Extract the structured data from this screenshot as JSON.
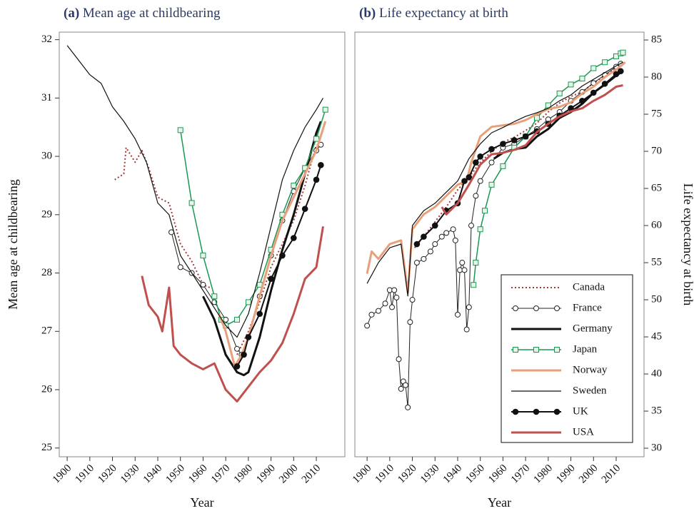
{
  "chart_data": [
    {
      "type": "line",
      "panel": "(a)",
      "title": "Mean age at childbearing",
      "xlabel": "Year",
      "ylabel": "Mean age at childbearing",
      "yaxis": "left",
      "xlim": [
        1896.5,
        2022.6
      ],
      "ylim": [
        24.85,
        32.13
      ],
      "xticks": [
        1900,
        1910,
        1920,
        1930,
        1940,
        1950,
        1960,
        1970,
        1980,
        1990,
        2000,
        2010
      ],
      "yticks": [
        25,
        26,
        27,
        28,
        29,
        30,
        31,
        32
      ],
      "series": [
        {
          "color": "#a03a3a",
          "dash": "dotted",
          "marker": "none",
          "width": 2,
          "x": [
            1921,
            1925,
            1926,
            1930,
            1933,
            1936,
            1940,
            1945,
            1950,
            1955,
            1960,
            1963,
            1968,
            1975,
            1980,
            1985,
            1990,
            1995,
            2000,
            2005,
            2010
          ],
          "values": [
            29.6,
            29.7,
            30.15,
            29.9,
            30.1,
            29.8,
            29.3,
            29.2,
            28.5,
            28.2,
            27.8,
            27.75,
            null,
            26.6,
            27.0,
            27.5,
            28.1,
            28.5,
            28.9,
            29.5,
            30.2
          ]
        },
        {
          "color": "#222222",
          "dash": "solid",
          "marker": "open-circle",
          "width": 1,
          "x": [
            1946,
            1950,
            1955,
            1960,
            1965,
            1970,
            1975,
            1977,
            1980,
            1985,
            1990,
            1995,
            2000,
            2005,
            2010,
            2012
          ],
          "values": [
            28.7,
            28.1,
            28.0,
            27.8,
            27.5,
            27.2,
            26.7,
            26.6,
            26.9,
            27.6,
            28.3,
            28.9,
            29.4,
            29.8,
            30.1,
            30.2
          ]
        },
        {
          "color": "#111111",
          "dash": "solid",
          "marker": "none",
          "width": 3,
          "x": [
            1960,
            1965,
            1970,
            1975,
            1978,
            1980,
            1985,
            1990,
            1995,
            2000,
            2005,
            2010,
            2012
          ],
          "values": [
            27.6,
            27.2,
            26.6,
            26.3,
            26.25,
            26.3,
            26.9,
            27.7,
            28.4,
            29.0,
            29.7,
            30.4,
            30.6
          ]
        },
        {
          "color": "#1a9850",
          "dash": "solid",
          "marker": "open-square",
          "width": 1.5,
          "x": [
            1950,
            1955,
            1960,
            1965,
            1968,
            1970,
            1975,
            1980,
            1985,
            1990,
            1995,
            2000,
            2005,
            2010,
            2014
          ],
          "values": [
            30.45,
            29.2,
            28.3,
            27.6,
            27.2,
            27.1,
            27.2,
            27.5,
            27.8,
            28.4,
            29.0,
            29.5,
            29.8,
            30.3,
            30.8
          ]
        },
        {
          "color": "#e8a07a",
          "dash": "solid",
          "marker": "none",
          "width": 3,
          "x": [
            1967,
            1970,
            1974,
            1977,
            1980,
            1985,
            1990,
            1995,
            2000,
            2005,
            2010,
            2014
          ],
          "values": [
            27.3,
            27.0,
            26.4,
            26.6,
            26.9,
            27.6,
            28.3,
            28.9,
            29.3,
            29.7,
            30.1,
            30.6
          ]
        },
        {
          "color": "#111111",
          "dash": "solid",
          "marker": "none",
          "width": 1.2,
          "x": [
            1900,
            1905,
            1910,
            1915,
            1920,
            1925,
            1930,
            1935,
            1940,
            1945,
            1950,
            1955,
            1960,
            1965,
            1970,
            1975,
            1980,
            1985,
            1990,
            1995,
            2000,
            2005,
            2010,
            2013
          ],
          "values": [
            31.9,
            31.65,
            31.4,
            31.25,
            30.85,
            30.6,
            30.3,
            29.9,
            29.2,
            29.0,
            28.3,
            28.0,
            27.7,
            27.4,
            27.1,
            26.9,
            27.3,
            28.0,
            28.8,
            29.6,
            30.1,
            30.5,
            30.8,
            31.0
          ]
        },
        {
          "color": "#111111",
          "dash": "solid",
          "marker": "filled-circle",
          "width": 2,
          "x": [
            1975,
            1978,
            1980,
            1985,
            1990,
            1995,
            2000,
            2005,
            2010,
            2012
          ],
          "values": [
            26.4,
            26.6,
            26.9,
            27.3,
            27.9,
            28.3,
            28.6,
            29.1,
            29.6,
            29.85
          ]
        },
        {
          "color": "#c0504d",
          "dash": "solid",
          "marker": "none",
          "width": 3,
          "x": [
            1933,
            1936,
            1940,
            1942,
            1945,
            1947,
            1950,
            1955,
            1960,
            1965,
            1970,
            1975,
            1980,
            1985,
            1990,
            1995,
            2000,
            2005,
            2010,
            2013
          ],
          "values": [
            27.95,
            27.45,
            27.25,
            27.0,
            27.75,
            26.75,
            26.6,
            26.45,
            26.35,
            26.45,
            26.0,
            25.8,
            26.05,
            26.3,
            26.5,
            26.8,
            27.3,
            27.9,
            28.1,
            28.8
          ]
        }
      ]
    },
    {
      "type": "line",
      "panel": "(b)",
      "title": "Life expectancy at birth",
      "xlabel": "Year",
      "ylabel": "Life expectancy at birth",
      "yaxis": "right",
      "legend": "lower right",
      "xlim": [
        1894.6,
        2022.3
      ],
      "ylim": [
        28.85,
        86.06
      ],
      "xticks": [
        1900,
        1910,
        1920,
        1930,
        1940,
        1950,
        1960,
        1970,
        1980,
        1990,
        2000,
        2010
      ],
      "yticks": [
        30,
        35,
        40,
        45,
        50,
        55,
        60,
        65,
        70,
        75,
        80,
        85
      ],
      "series": [
        {
          "name": "Canada",
          "color": "#a03a3a",
          "dash": "dotted",
          "marker": "none",
          "width": 2,
          "x": [
            1921,
            1925,
            1930,
            1935,
            1940,
            1945,
            1950,
            1955,
            1960,
            1965,
            1970,
            1975,
            1980,
            1985,
            1990,
            1995,
            2000,
            2005,
            2010
          ],
          "values": [
            57,
            58.5,
            60.5,
            62.5,
            64.8,
            66.5,
            68.5,
            70,
            71.2,
            71.9,
            72.8,
            73.8,
            75.3,
            76.5,
            77.4,
            78,
            79.2,
            80.2,
            81.3
          ]
        },
        {
          "name": "France",
          "color": "#222222",
          "dash": "solid",
          "marker": "open-circle",
          "width": 1,
          "x": [
            1900,
            1902,
            1905,
            1908,
            1910,
            1911,
            1912,
            1913,
            1914,
            1915,
            1916,
            1917,
            1918,
            1919,
            1920,
            1922,
            1925,
            1928,
            1930,
            1933,
            1935,
            1938,
            1939,
            1940,
            1941,
            1942,
            1943,
            1944,
            1945,
            1946,
            1948,
            1950,
            1955,
            1960,
            1965,
            1970,
            1975,
            1980,
            1985,
            1990,
            1995,
            2000,
            2005,
            2010,
            2012
          ],
          "values": [
            46.5,
            48,
            48.5,
            49.5,
            51.3,
            49,
            51.3,
            50.3,
            42,
            38,
            39,
            38.5,
            35.5,
            47,
            50,
            55,
            55.5,
            56.5,
            57.5,
            58.5,
            59,
            59.5,
            58,
            48,
            54,
            55,
            54,
            46,
            49,
            60,
            64,
            66,
            68.5,
            70.5,
            71,
            72,
            73,
            74.3,
            75.3,
            76.8,
            78,
            79.2,
            80.3,
            81.4,
            81.8
          ]
        },
        {
          "name": "Germany",
          "color": "#111111",
          "dash": "solid",
          "marker": "none",
          "width": 3,
          "x": [
            1956,
            1960,
            1965,
            1970,
            1975,
            1980,
            1985,
            1990,
            1995,
            2000,
            2005,
            2010,
            2013
          ],
          "values": [
            69,
            69.8,
            70.3,
            70.5,
            72,
            73,
            74.5,
            75.3,
            76.4,
            77.9,
            79,
            80.2,
            80.8
          ]
        },
        {
          "name": "Japan",
          "color": "#1a9850",
          "dash": "solid",
          "marker": "open-square",
          "width": 1.5,
          "x": [
            1947,
            1948,
            1950,
            1952,
            1955,
            1960,
            1965,
            1970,
            1975,
            1980,
            1985,
            1990,
            1995,
            2000,
            2005,
            2010,
            2012,
            2013
          ],
          "values": [
            52,
            55,
            59.5,
            62,
            65.5,
            68,
            70.5,
            72,
            74.5,
            76.2,
            77.8,
            79,
            79.8,
            81.2,
            82,
            82.8,
            83.2,
            83.3
          ]
        },
        {
          "name": "Norway",
          "color": "#e8a07a",
          "dash": "solid",
          "marker": "none",
          "width": 3,
          "x": [
            1900,
            1902,
            1905,
            1910,
            1915,
            1918,
            1920,
            1925,
            1930,
            1935,
            1940,
            1944,
            1946,
            1950,
            1955,
            1960,
            1965,
            1970,
            1975,
            1980,
            1985,
            1990,
            1995,
            2000,
            2005,
            2010,
            2014
          ],
          "values": [
            53.5,
            56.5,
            55.5,
            57.5,
            58,
            51,
            59.5,
            61.5,
            62.5,
            64,
            65.5,
            66,
            68.5,
            72,
            73.3,
            73.5,
            73.7,
            74.2,
            75,
            75.7,
            76,
            76.6,
            77.8,
            78.7,
            80,
            81,
            82
          ]
        },
        {
          "name": "Sweden",
          "color": "#111111",
          "dash": "solid",
          "marker": "none",
          "width": 1.2,
          "x": [
            1900,
            1905,
            1910,
            1915,
            1918,
            1920,
            1925,
            1930,
            1935,
            1940,
            1945,
            1950,
            1955,
            1960,
            1965,
            1970,
            1975,
            1980,
            1985,
            1990,
            1995,
            2000,
            2005,
            2010,
            2013
          ],
          "values": [
            52.2,
            55,
            57,
            57.5,
            50.5,
            60,
            62,
            63,
            64.5,
            66,
            69,
            71,
            72.5,
            73.2,
            74,
            74.7,
            75.2,
            75.8,
            76.8,
            77.6,
            78.8,
            79.7,
            80.6,
            81.5,
            82
          ]
        },
        {
          "name": "UK",
          "color": "#111111",
          "dash": "solid",
          "marker": "filled-circle",
          "width": 2,
          "x": [
            1922,
            1925,
            1930,
            1935,
            1940,
            1943,
            1945,
            1948,
            1950,
            1955,
            1960,
            1965,
            1970,
            1975,
            1980,
            1985,
            1990,
            1995,
            2000,
            2005,
            2010,
            2012
          ],
          "values": [
            57.5,
            58.5,
            60,
            62,
            63,
            66,
            66.5,
            68.5,
            69.3,
            70.3,
            71,
            71.5,
            72,
            72.7,
            73.7,
            74.8,
            75.8,
            76.8,
            77.9,
            79.1,
            80.4,
            80.8
          ]
        },
        {
          "name": "USA",
          "color": "#c0504d",
          "dash": "solid",
          "marker": "none",
          "width": 3,
          "x": [
            1933,
            1935,
            1940,
            1945,
            1950,
            1955,
            1960,
            1965,
            1970,
            1975,
            1980,
            1985,
            1990,
            1995,
            2000,
            2005,
            2010,
            2013
          ],
          "values": [
            62.5,
            61.5,
            63,
            65.5,
            68.2,
            69.6,
            69.8,
            70.2,
            70.8,
            72.6,
            73.7,
            74.7,
            75.4,
            75.8,
            76.8,
            77.6,
            78.7,
            78.9
          ]
        }
      ]
    }
  ]
}
